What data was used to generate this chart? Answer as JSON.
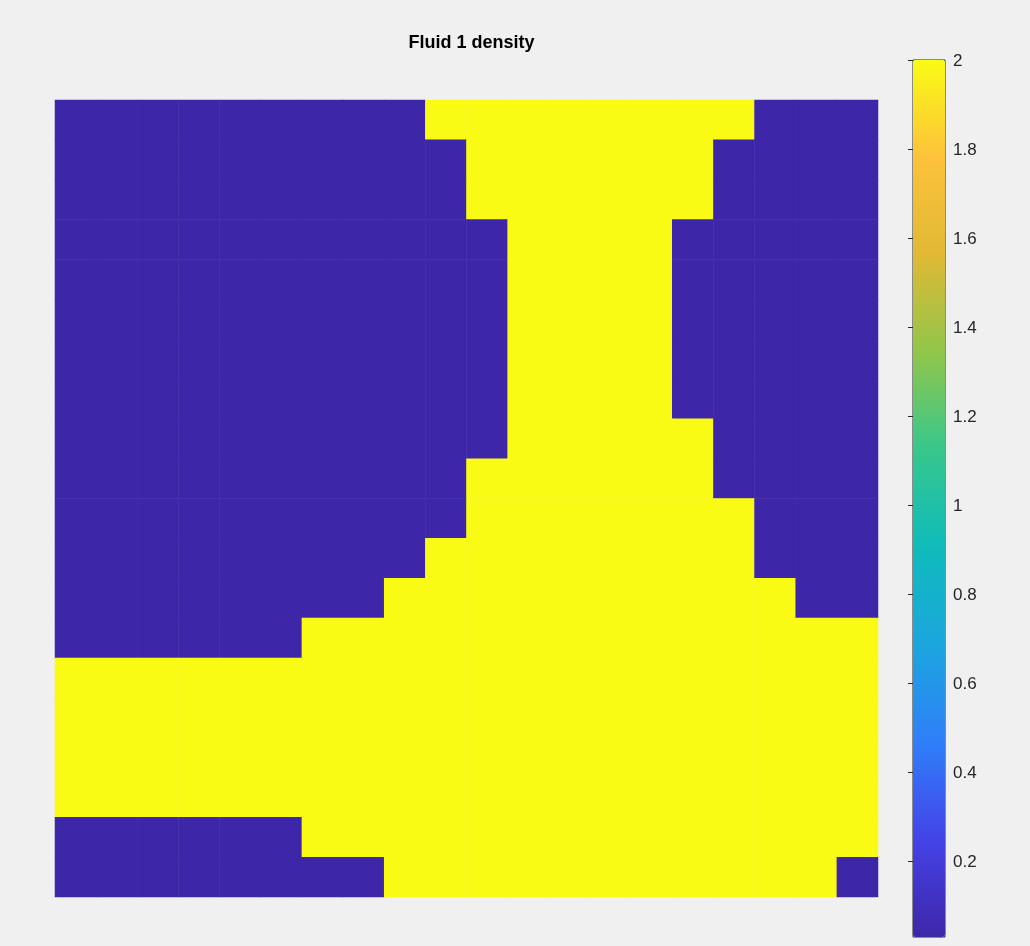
{
  "chart_data": {
    "type": "heatmap",
    "title": "Fluid 1 density",
    "categories": [
      null,
      null,
      null,
      null,
      null,
      null,
      null,
      null,
      null,
      null,
      null,
      null,
      null,
      null,
      null,
      null,
      null,
      null,
      null,
      null
    ],
    "y_categories": [
      null,
      null,
      null,
      null,
      null,
      null,
      null,
      null,
      null,
      null,
      null,
      null,
      null,
      null,
      null,
      null,
      null,
      null,
      null,
      null
    ],
    "cells": [
      [
        0.03,
        0.03,
        0.03,
        0.03,
        0.03,
        0.03,
        0.03,
        0.03,
        0.03,
        2,
        2,
        2,
        2,
        2,
        2,
        2,
        2,
        0.03,
        0.03,
        0.03
      ],
      [
        0.03,
        0.03,
        0.03,
        0.03,
        0.03,
        0.03,
        0.03,
        0.03,
        0.03,
        0.03,
        2,
        2,
        2,
        2,
        2,
        2,
        0.03,
        0.03,
        0.03,
        0.03
      ],
      [
        0.03,
        0.03,
        0.03,
        0.03,
        0.03,
        0.03,
        0.03,
        0.03,
        0.03,
        0.03,
        2,
        2,
        2,
        2,
        2,
        2,
        0.03,
        0.03,
        0.03,
        0.03
      ],
      [
        0.03,
        0.03,
        0.03,
        0.03,
        0.03,
        0.03,
        0.03,
        0.03,
        0.03,
        0.03,
        0.03,
        2,
        2,
        2,
        2,
        0.03,
        0.03,
        0.03,
        0.03,
        0.03
      ],
      [
        0.03,
        0.03,
        0.03,
        0.03,
        0.03,
        0.03,
        0.03,
        0.03,
        0.03,
        0.03,
        0.03,
        2,
        2,
        2,
        2,
        0.03,
        0.03,
        0.03,
        0.03,
        0.03
      ],
      [
        0.03,
        0.03,
        0.03,
        0.03,
        0.03,
        0.03,
        0.03,
        0.03,
        0.03,
        0.03,
        0.03,
        2,
        2,
        2,
        2,
        0.03,
        0.03,
        0.03,
        0.03,
        0.03
      ],
      [
        0.03,
        0.03,
        0.03,
        0.03,
        0.03,
        0.03,
        0.03,
        0.03,
        0.03,
        0.03,
        0.03,
        2,
        2,
        2,
        2,
        0.03,
        0.03,
        0.03,
        0.03,
        0.03
      ],
      [
        0.03,
        0.03,
        0.03,
        0.03,
        0.03,
        0.03,
        0.03,
        0.03,
        0.03,
        0.03,
        0.03,
        2,
        2,
        2,
        2,
        0.03,
        0.03,
        0.03,
        0.03,
        0.03
      ],
      [
        0.03,
        0.03,
        0.03,
        0.03,
        0.03,
        0.03,
        0.03,
        0.03,
        0.03,
        0.03,
        0.03,
        2,
        2,
        2,
        2,
        2,
        0.03,
        0.03,
        0.03,
        0.03
      ],
      [
        0.03,
        0.03,
        0.03,
        0.03,
        0.03,
        0.03,
        0.03,
        0.03,
        0.03,
        0.03,
        2,
        2,
        2,
        2,
        2,
        2,
        0.03,
        0.03,
        0.03,
        0.03
      ],
      [
        0.03,
        0.03,
        0.03,
        0.03,
        0.03,
        0.03,
        0.03,
        0.03,
        0.03,
        0.03,
        2,
        2,
        2,
        2,
        2,
        2,
        2,
        0.03,
        0.03,
        0.03
      ],
      [
        0.03,
        0.03,
        0.03,
        0.03,
        0.03,
        0.03,
        0.03,
        0.03,
        0.03,
        2,
        2,
        2,
        2,
        2,
        2,
        2,
        2,
        0.03,
        0.03,
        0.03
      ],
      [
        0.03,
        0.03,
        0.03,
        0.03,
        0.03,
        0.03,
        0.03,
        0.03,
        2,
        2,
        2,
        2,
        2,
        2,
        2,
        2,
        2,
        2,
        0.03,
        0.03
      ],
      [
        0.03,
        0.03,
        0.03,
        0.03,
        0.03,
        0.03,
        2,
        2,
        2,
        2,
        2,
        2,
        2,
        2,
        2,
        2,
        2,
        2,
        2,
        2
      ],
      [
        2,
        2,
        2,
        2,
        2,
        2,
        2,
        2,
        2,
        2,
        2,
        2,
        2,
        2,
        2,
        2,
        2,
        2,
        2,
        2
      ],
      [
        2,
        2,
        2,
        2,
        2,
        2,
        2,
        2,
        2,
        2,
        2,
        2,
        2,
        2,
        2,
        2,
        2,
        2,
        2,
        2
      ],
      [
        2,
        2,
        2,
        2,
        2,
        2,
        2,
        2,
        2,
        2,
        2,
        2,
        2,
        2,
        2,
        2,
        2,
        2,
        2,
        2
      ],
      [
        2,
        2,
        2,
        2,
        2,
        2,
        2,
        2,
        2,
        2,
        2,
        2,
        2,
        2,
        2,
        2,
        2,
        2,
        2,
        2
      ],
      [
        0.03,
        0.03,
        0.03,
        0.03,
        0.03,
        0.03,
        2,
        2,
        2,
        2,
        2,
        2,
        2,
        2,
        2,
        2,
        2,
        2,
        2,
        2
      ],
      [
        0.03,
        0.03,
        0.03,
        0.03,
        0.03,
        0.03,
        0.03,
        0.03,
        2,
        2,
        2,
        2,
        2,
        2,
        2,
        2,
        2,
        2,
        2,
        0.03
      ]
    ],
    "clim": [
      0.03,
      2
    ],
    "cticks": [
      0.2,
      0.4,
      0.6,
      0.8,
      1,
      1.2,
      1.4,
      1.6,
      1.8,
      2
    ]
  }
}
